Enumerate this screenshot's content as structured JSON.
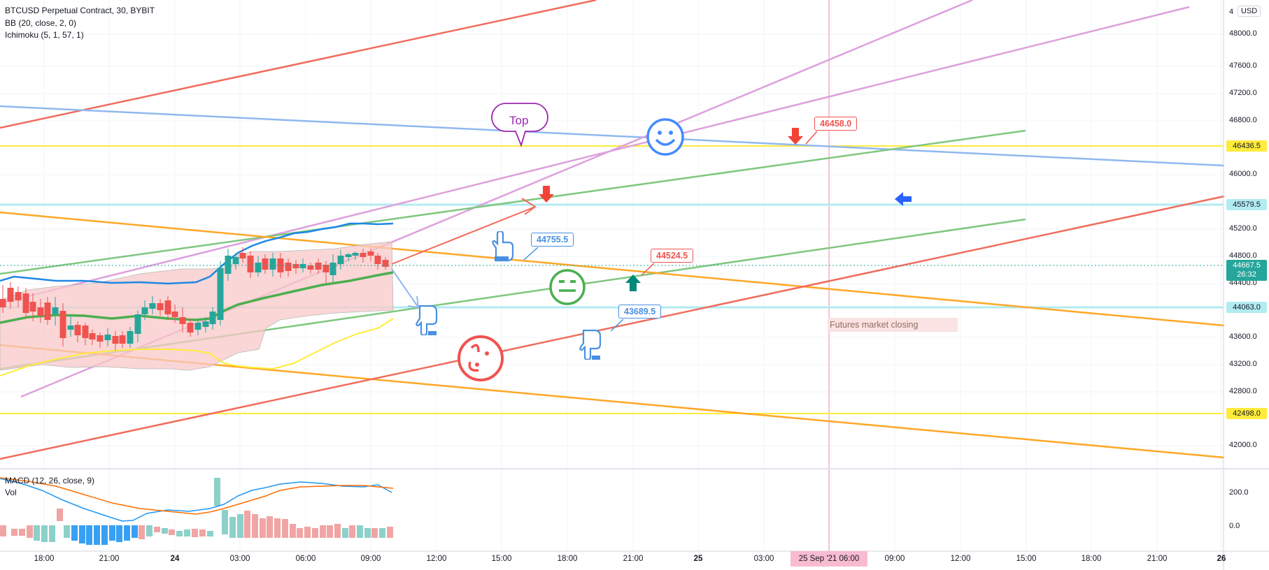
{
  "legend": {
    "title": "BTCUSD Perpetual Contract, 30, BYBIT",
    "bb": "BB (20, close, 2, 0)",
    "ichimoku": "Ichimoku (5, 1, 57, 1)",
    "macd": "MACD (12, 26, close, 9)",
    "vol": "Vol"
  },
  "currency_label": "USD",
  "price_axis": {
    "ticks": [
      "48000.0",
      "47600.0",
      "47200.0",
      "46800.0",
      "46000.0",
      "45200.0",
      "44800.0",
      "44400.0",
      "43600.0",
      "43200.0",
      "42800.0",
      "42000.0"
    ],
    "top_partial": "4",
    "horizontal_levels": [
      {
        "value": "46436.5",
        "bg": "#ffeb3b",
        "fg": "#131722"
      },
      {
        "value": "45579.5",
        "bg": "#b2ebf2",
        "fg": "#131722"
      },
      {
        "value": "44063.0",
        "bg": "#b2ebf2",
        "fg": "#131722"
      },
      {
        "value": "42498.0",
        "bg": "#ffeb3b",
        "fg": "#131722"
      }
    ],
    "last_price": "44667.5",
    "countdown": "26:32",
    "last_price_color": "#26a69a"
  },
  "macd_axis": {
    "ticks": [
      "200.0",
      "0.0"
    ]
  },
  "time_axis": {
    "ticks": [
      "18:00",
      "21:00",
      "24",
      "03:00",
      "06:00",
      "09:00",
      "12:00",
      "15:00",
      "18:00",
      "21:00",
      "25",
      "03:00",
      "06:00",
      "09:00",
      "12:00",
      "15:00",
      "18:00",
      "21:00",
      "26"
    ],
    "highlight": "25 Sep '21",
    "highlight_time": "06:00"
  },
  "annotations": {
    "top_bubble": "Top",
    "price_labels": [
      {
        "text": "46458.0",
        "color": "#f05350"
      },
      {
        "text": "44755.5",
        "color": "#4a90e2"
      },
      {
        "text": "44524.5",
        "color": "#f05350"
      },
      {
        "text": "43689.5",
        "color": "#4a90e2"
      }
    ],
    "futures_note": "Futures market closing"
  },
  "icons": {
    "happy": "smiling-face-icon",
    "neutral": "neutral-face-icon",
    "sad": "sad-face-icon",
    "pointers": "pointing-hand-icon",
    "arrows": [
      "arrow-down-icon",
      "arrow-up-icon",
      "arrow-left-icon"
    ]
  },
  "colors": {
    "bull": "#26a69a",
    "bear": "#ef5350",
    "bb_blue": "#2196f3",
    "ichimoku_green": "#66bb6a",
    "trend_orange": "#ffa726",
    "trend_red": "#f06c5c",
    "trend_violet": "#dda0dd"
  }
}
